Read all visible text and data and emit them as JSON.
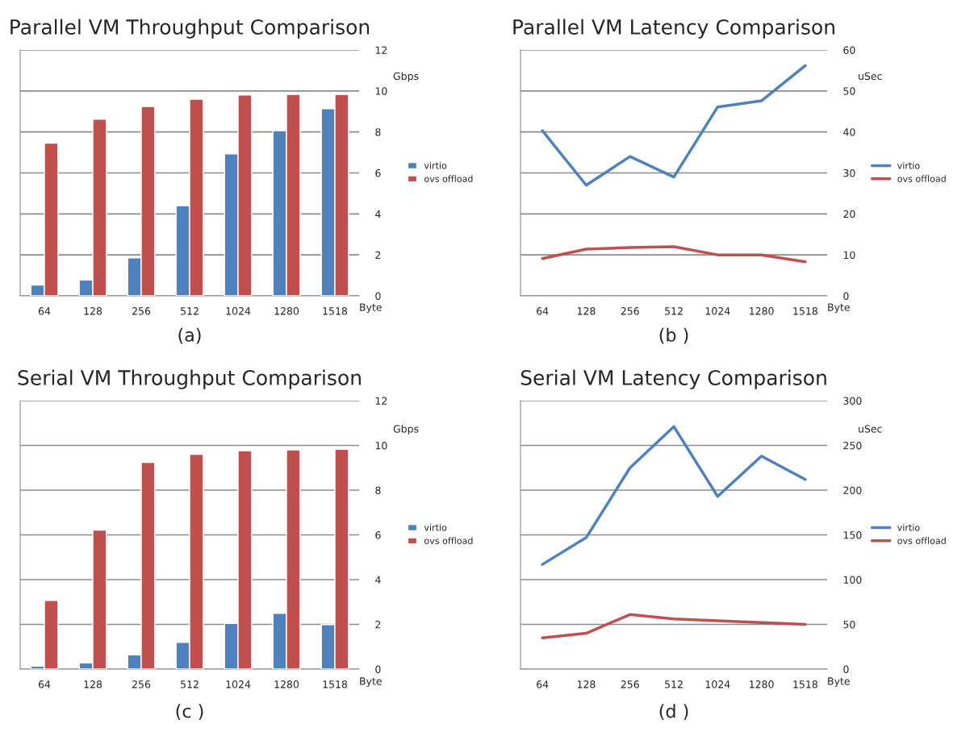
{
  "chart_data": [
    {
      "type": "bar",
      "title": "Parallel VM Throughput Comparison",
      "xlabel": "Byte",
      "ylabel": "Gbps",
      "categories": [
        "64",
        "128",
        "256",
        "512",
        "1024",
        "1280",
        "1518"
      ],
      "series": [
        {
          "name": "virtio",
          "color": "#4f81bd",
          "values": [
            0.53,
            0.77,
            1.86,
            4.4,
            6.93,
            8.06,
            9.14
          ]
        },
        {
          "name": "ovs offload",
          "color": "#c0504d",
          "values": [
            7.45,
            8.62,
            9.24,
            9.6,
            9.8,
            9.83,
            9.83
          ]
        }
      ],
      "ylim": [
        0,
        12
      ],
      "yticks": [
        0,
        2,
        4,
        6,
        8,
        10,
        12
      ],
      "grid": "y",
      "legend": "right",
      "annotations": [
        "(a)"
      ]
    },
    {
      "type": "line",
      "title": "Parallel VM Latency Comparison",
      "xlabel": "Byte",
      "ylabel": "uSec",
      "categories": [
        "64",
        "128",
        "256",
        "512",
        "1024",
        "1280",
        "1518"
      ],
      "series": [
        {
          "name": "virtio",
          "color": "#4f81bd",
          "values": [
            40.3,
            27,
            34,
            29,
            46.1,
            47.6,
            56.2
          ]
        },
        {
          "name": "ovs offload",
          "color": "#c0504d",
          "values": [
            9.1,
            11.4,
            11.8,
            12,
            10,
            10,
            8.3
          ]
        }
      ],
      "ylim": [
        0,
        60
      ],
      "yticks": [
        0,
        10,
        20,
        30,
        40,
        50,
        60
      ],
      "grid": "y",
      "legend": "right",
      "annotations": [
        "(b )"
      ]
    },
    {
      "type": "bar",
      "title": "Serial VM Throughput Comparison",
      "xlabel": "Byte",
      "ylabel": "Gbps",
      "categories": [
        "64",
        "128",
        "256",
        "512",
        "1024",
        "1280",
        "1518"
      ],
      "series": [
        {
          "name": "virtio",
          "color": "#4f81bd",
          "values": [
            0.13,
            0.28,
            0.64,
            1.2,
            2.04,
            2.49,
            1.99
          ]
        },
        {
          "name": "ovs offload",
          "color": "#c0504d",
          "values": [
            3.07,
            6.21,
            9.24,
            9.6,
            9.76,
            9.8,
            9.83
          ]
        }
      ],
      "ylim": [
        0,
        12
      ],
      "yticks": [
        0,
        2,
        4,
        6,
        8,
        10,
        12
      ],
      "grid": "y",
      "legend": "right",
      "annotations": [
        "(c )"
      ]
    },
    {
      "type": "line",
      "title": "Serial VM Latency Comparison",
      "xlabel": "Byte",
      "ylabel": "uSec",
      "categories": [
        "64",
        "128",
        "256",
        "512",
        "1024",
        "1280",
        "1518"
      ],
      "series": [
        {
          "name": "virtio",
          "color": "#4f81bd",
          "values": [
            117,
            147,
            225,
            271,
            193,
            238,
            212
          ]
        },
        {
          "name": "ovs offload",
          "color": "#c0504d",
          "values": [
            35,
            40,
            61,
            56,
            54,
            52,
            50
          ]
        }
      ],
      "ylim": [
        0,
        300
      ],
      "yticks": [
        0,
        50,
        100,
        150,
        200,
        250,
        300
      ],
      "grid": "y",
      "legend": "right",
      "annotations": [
        "(d )"
      ]
    }
  ]
}
